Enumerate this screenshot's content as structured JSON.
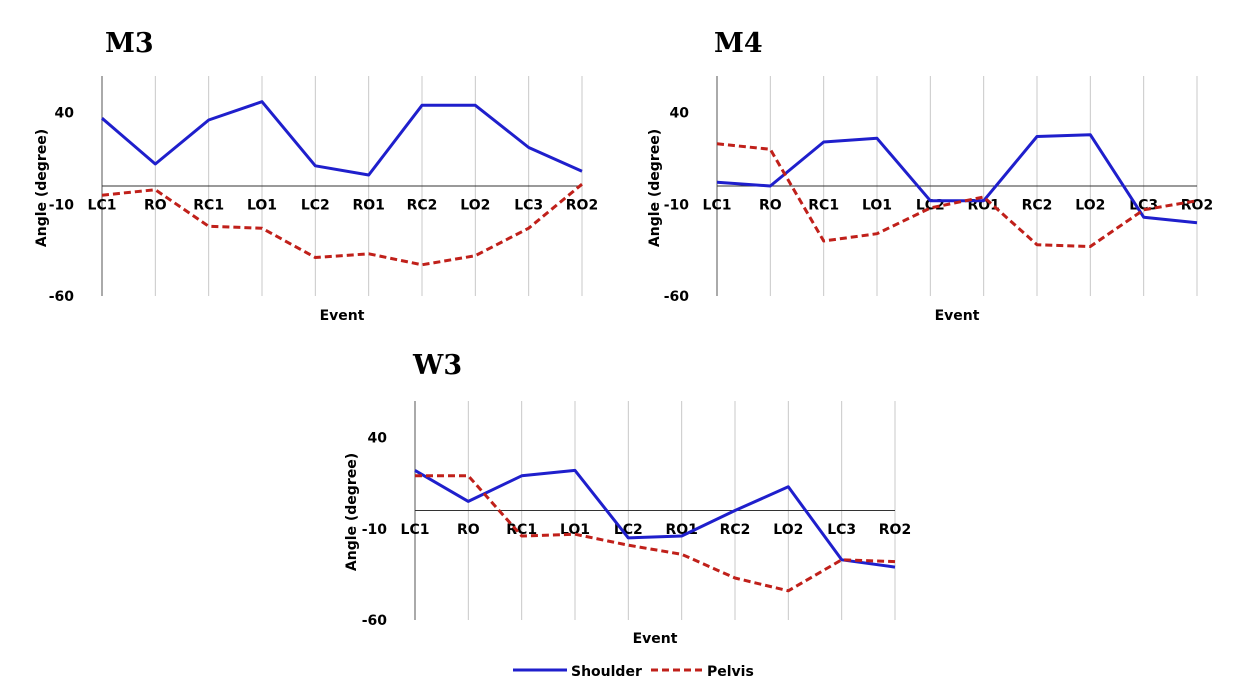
{
  "figure": {
    "legend": {
      "placement": "bottom-center",
      "items": [
        {
          "label": "Shoulder",
          "color": "#1f1fcc",
          "dash": "solid"
        },
        {
          "label": "Pelvis",
          "color": "#c0201a",
          "dash": "dashed"
        }
      ]
    }
  },
  "chart_data": [
    {
      "type": "line",
      "title": "M3",
      "xlabel": "Event",
      "ylabel": "Angle (degree)",
      "ylim": [
        -60,
        60
      ],
      "yticks": [
        40,
        -10,
        -60
      ],
      "zero_line": true,
      "grid": "vertical",
      "categories": [
        "LC1",
        "RO",
        "RC1",
        "LO1",
        "LC2",
        "RO1",
        "RC2",
        "LO2",
        "LC3",
        "RO2"
      ],
      "series": [
        {
          "name": "Shoulder",
          "values": [
            37,
            12,
            36,
            46,
            11,
            6,
            44,
            44,
            21,
            8
          ]
        },
        {
          "name": "Pelvis",
          "values": [
            -5,
            -2,
            -22,
            -23,
            -39,
            -37,
            -43,
            -38,
            -23,
            1
          ]
        }
      ]
    },
    {
      "type": "line",
      "title": "M4",
      "xlabel": "Event",
      "ylabel": "Angle (degree)",
      "ylim": [
        -60,
        60
      ],
      "yticks": [
        40,
        -10,
        -60
      ],
      "zero_line": true,
      "grid": "vertical",
      "categories": [
        "LC1",
        "RO",
        "RC1",
        "LO1",
        "LC2",
        "RO1",
        "RC2",
        "LO2",
        "LC3",
        "RO2"
      ],
      "series": [
        {
          "name": "Shoulder",
          "values": [
            2,
            0,
            24,
            26,
            -8,
            -8,
            27,
            28,
            -17,
            -20
          ]
        },
        {
          "name": "Pelvis",
          "values": [
            23,
            20,
            -30,
            -26,
            -12,
            -6,
            -32,
            -33,
            -13,
            -8
          ]
        }
      ]
    },
    {
      "type": "line",
      "title": "W3",
      "xlabel": "Event",
      "ylabel": "Angle (degree)",
      "ylim": [
        -60,
        60
      ],
      "yticks": [
        40,
        -10,
        -60
      ],
      "zero_line": true,
      "grid": "vertical",
      "categories": [
        "LC1",
        "RO",
        "RC1",
        "LO1",
        "LC2",
        "RO1",
        "RC2",
        "LO2",
        "LC3",
        "RO2"
      ],
      "series": [
        {
          "name": "Shoulder",
          "values": [
            22,
            5,
            19,
            22,
            -15,
            -14,
            0,
            13,
            -27,
            -31
          ]
        },
        {
          "name": "Pelvis",
          "values": [
            19,
            19,
            -14,
            -13,
            -19,
            -24,
            -37,
            -44,
            -27,
            -28
          ]
        }
      ]
    }
  ]
}
